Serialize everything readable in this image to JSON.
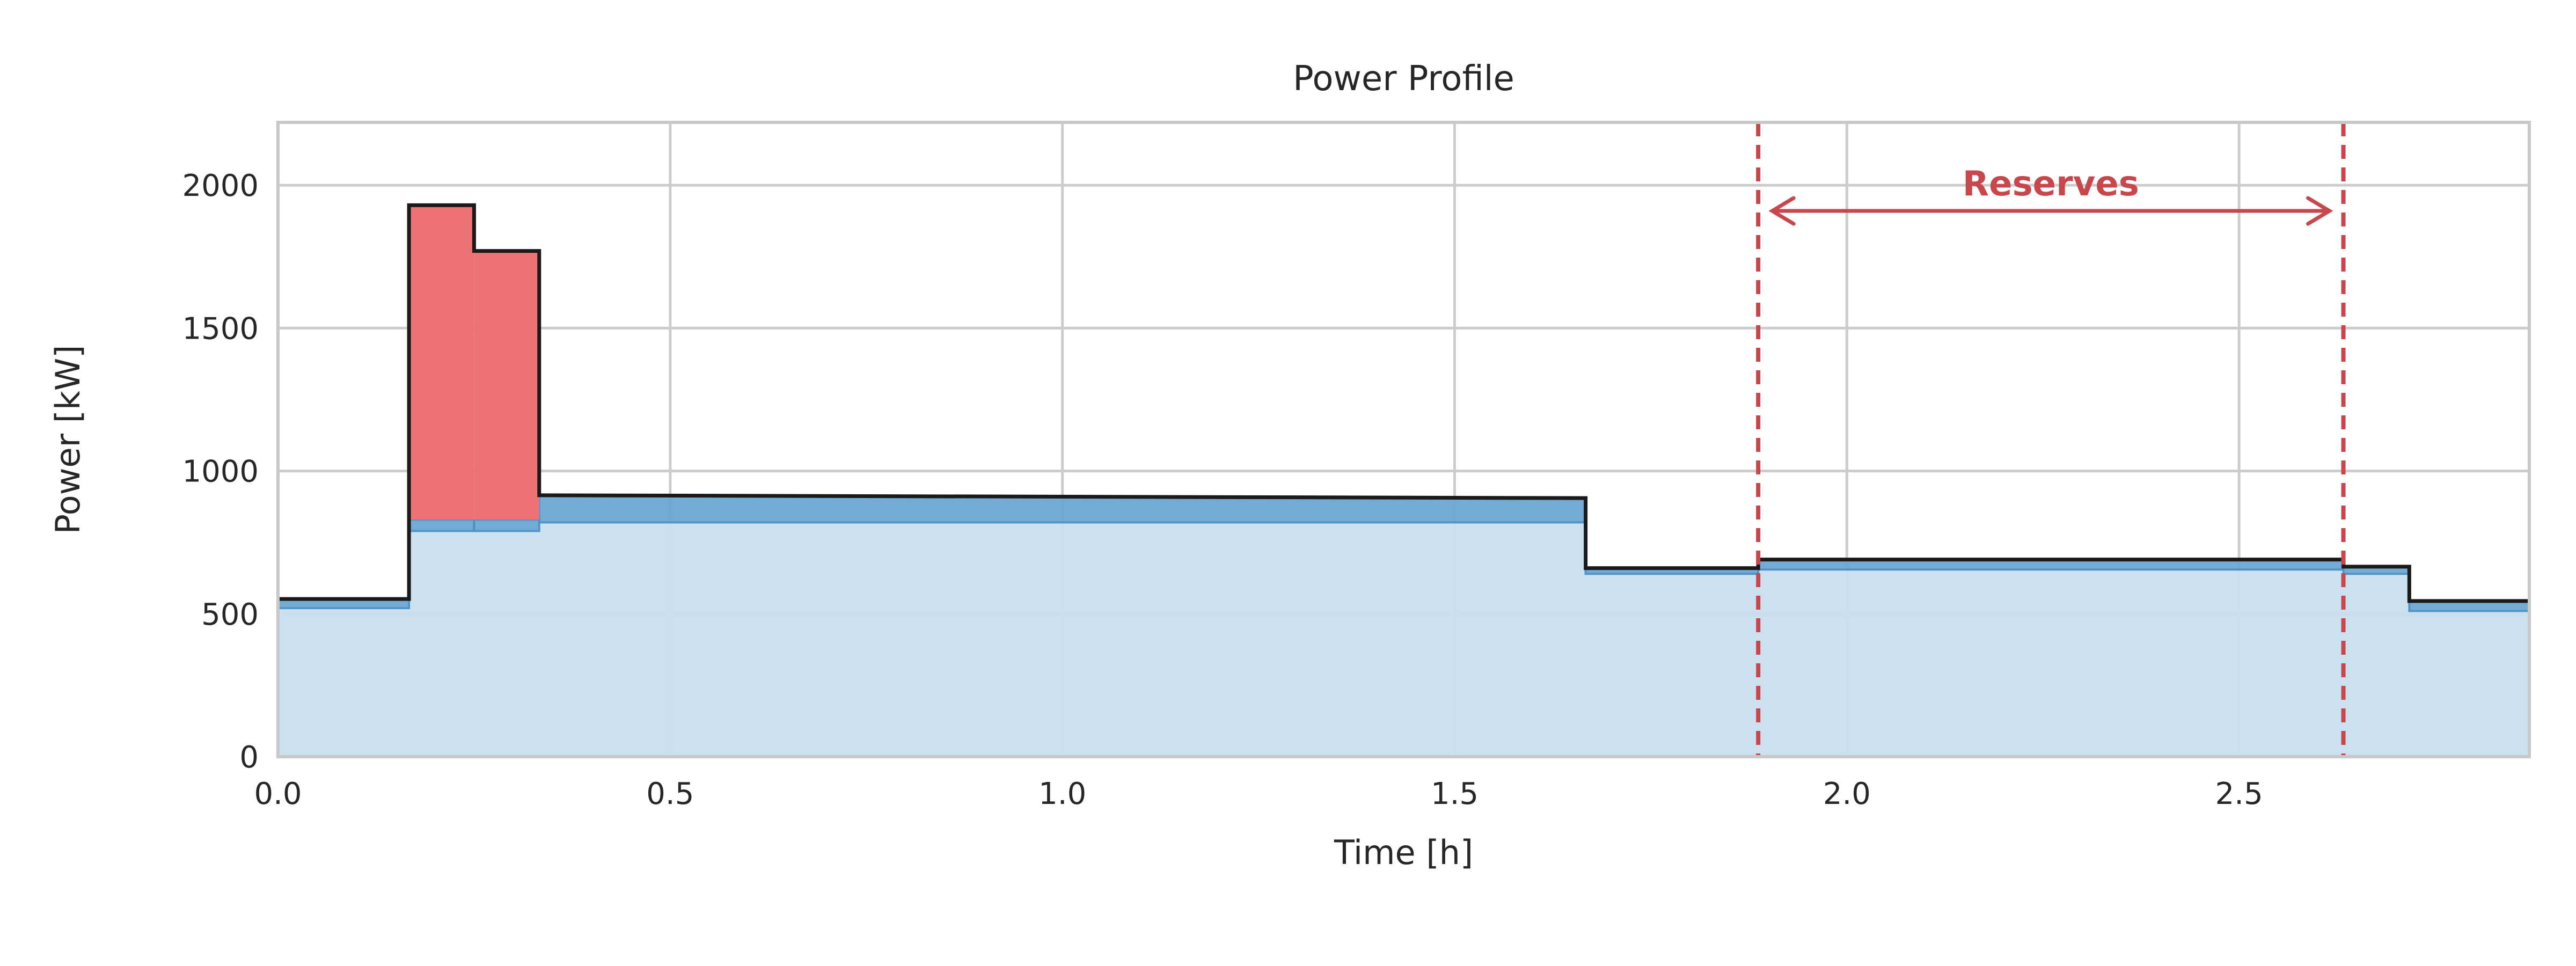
{
  "chart_data": {
    "type": "area",
    "title": "Power Profile",
    "xlabel": "Time [h]",
    "ylabel": "Power [kW]",
    "xlim": [
      0,
      2.87
    ],
    "ylim": [
      0,
      2220
    ],
    "xticks": [
      0.0,
      0.5,
      1.0,
      1.5,
      2.0,
      2.5
    ],
    "xtick_labels": [
      "0.0",
      "0.5",
      "1.0",
      "1.5",
      "2.0",
      "2.5"
    ],
    "yticks": [
      0,
      500,
      1000,
      1500,
      2000
    ],
    "ytick_labels": [
      "0",
      "500",
      "1000",
      "1500",
      "2000"
    ],
    "grid": true,
    "colors": {
      "base_fill": "#c8dfee",
      "mid_fill": "#6ca7d3",
      "mid_line": "#4a90c9",
      "peak_fill": "#ed7275",
      "total_line": "#1a1a1a",
      "reserve": "#c8474c",
      "grid": "#cccccc",
      "frame": "#c8c8c8"
    },
    "segments": [
      {
        "x0": 0.0,
        "x1": 0.167,
        "base": 520,
        "mid": 552,
        "total": 552
      },
      {
        "x0": 0.167,
        "x1": 0.25,
        "base": 790,
        "mid": 830,
        "total": 1930
      },
      {
        "x0": 0.25,
        "x1": 0.333,
        "base": 790,
        "mid": 830,
        "total": 1770
      },
      {
        "x0": 0.333,
        "x1": 1.667,
        "base": 820,
        "mid": 910,
        "total": 910
      },
      {
        "x0": 1.667,
        "x1": 1.887,
        "base": 640,
        "mid": 660,
        "total": 660
      },
      {
        "x0": 1.887,
        "x1": 2.633,
        "base": 655,
        "mid": 690,
        "total": 690
      },
      {
        "x0": 2.633,
        "x1": 2.717,
        "base": 640,
        "mid": 665,
        "total": 665
      },
      {
        "x0": 2.717,
        "x1": 2.87,
        "base": 510,
        "mid": 545,
        "total": 545
      }
    ],
    "mid_slopes": [
      {
        "x0": 0.333,
        "x1": 1.667,
        "start": 915,
        "end": 905
      }
    ],
    "annotation": {
      "label": "Reserves",
      "x_start": 1.887,
      "x_end": 2.633,
      "arrow_y": 1910,
      "label_y": 2010
    }
  }
}
